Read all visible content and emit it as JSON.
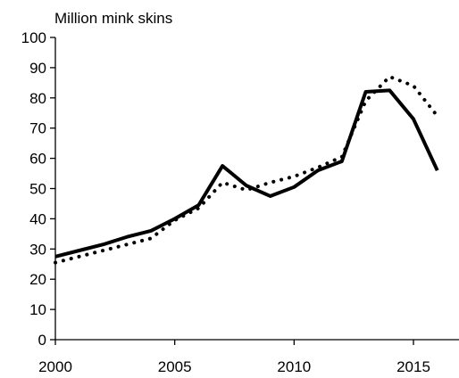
{
  "chart_data": {
    "type": "line",
    "title": "",
    "xlabel": "",
    "ylabel": "Million mink skins",
    "xlim": [
      2000,
      2017
    ],
    "ylim": [
      0,
      100
    ],
    "x_ticks": [
      2000,
      2005,
      2010,
      2015
    ],
    "y_ticks": [
      0,
      10,
      20,
      30,
      40,
      50,
      60,
      70,
      80,
      90,
      100
    ],
    "grid": false,
    "legend": "none",
    "series": [
      {
        "line_style": "solid",
        "color": "#000000",
        "x": [
          2000,
          2001,
          2002,
          2003,
          2004,
          2005,
          2006,
          2007,
          2008,
          2009,
          2010,
          2011,
          2012,
          2013,
          2014,
          2015,
          2016
        ],
        "y": [
          27.5,
          29.5,
          31.5,
          34,
          36,
          40,
          44.5,
          57.5,
          51,
          47.5,
          50.5,
          56,
          59,
          82,
          82.5,
          73,
          56
        ]
      },
      {
        "line_style": "dotted",
        "color": "#000000",
        "x": [
          2000,
          2001,
          2002,
          2003,
          2004,
          2005,
          2006,
          2007,
          2008,
          2009,
          2010,
          2011,
          2012,
          2013,
          2014,
          2015,
          2016
        ],
        "y": [
          25.5,
          27.5,
          29.5,
          31.5,
          33.5,
          39.5,
          43.5,
          52,
          49.5,
          52,
          54,
          57,
          60.5,
          79,
          87,
          84,
          74
        ]
      }
    ]
  }
}
